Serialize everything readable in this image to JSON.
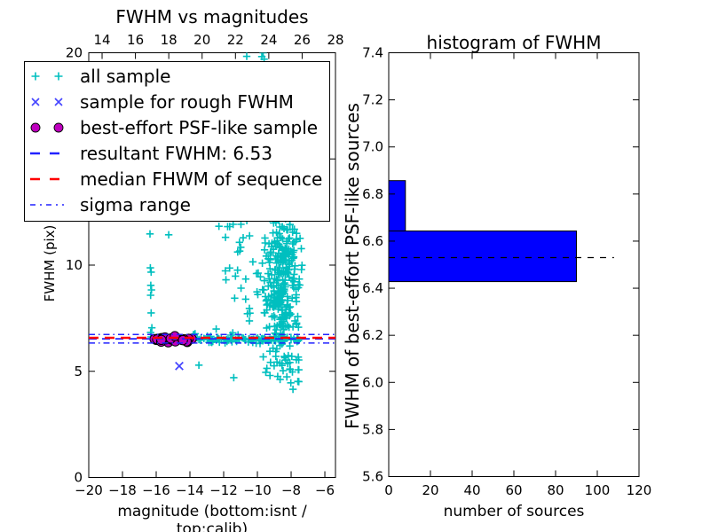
{
  "figure": {
    "background": "#ffffff"
  },
  "colors": {
    "cyan": "#00bfbf",
    "blue_marker": "#4444ff",
    "blue_line": "#2222ff",
    "red": "#ff0000",
    "magenta": "#bf00bf",
    "bar_blue": "#0000ff",
    "black": "#000000"
  },
  "chart_data": [
    {
      "type": "scatter",
      "title": "FWHM vs magnitudes",
      "xlabel": "magnitude (bottom:isnt / top:calib)",
      "ylabel": "FWHM (pix)",
      "xlim": [
        -20,
        -5.37
      ],
      "ylim": [
        0,
        20
      ],
      "xticks_bottom": [
        -20,
        -18,
        -16,
        -14,
        -12,
        -10,
        -8,
        -6
      ],
      "top_axis": {
        "lim": [
          13.2,
          28.0
        ],
        "ticks": [
          14,
          16,
          18,
          20,
          22,
          24,
          26,
          28
        ]
      },
      "yticks": [
        0,
        5,
        10,
        15,
        20
      ],
      "grid": false,
      "seed": 7,
      "series": [
        {
          "name": "all sample",
          "marker": "plus",
          "color": "#00bfbf",
          "points": [
            [
              -16.37,
              11.47
            ],
            [
              -15.26,
              11.43
            ],
            [
              -16.35,
              9.87
            ],
            [
              -16.3,
              9.67
            ],
            [
              -16.32,
              9.05
            ],
            [
              -16.28,
              8.83
            ],
            [
              -16.33,
              8.58
            ],
            [
              -16.3,
              7.75
            ],
            [
              -16.26,
              7.05
            ],
            [
              -16.33,
              6.83
            ],
            [
              -16.3,
              6.62
            ],
            [
              -13.47,
              5.29
            ],
            [
              -11.4,
              4.7
            ],
            [
              -7.89,
              4.15
            ],
            [
              -10.63,
              19.83
            ],
            [
              -9.74,
              19.82
            ],
            [
              -9.6,
              19.7
            ],
            [
              -9.66,
              20.0
            ]
          ],
          "clusters": [
            {
              "n": 95,
              "m": [
                "uniform",
                -13.85,
                -7.5
              ],
              "f": [
                "gauss",
                6.5,
                0.09
              ]
            },
            {
              "n": 32,
              "m": [
                "uniform",
                -12.45,
                -10.4
              ],
              "f": [
                "uniform",
                5.9,
                12.4
              ]
            },
            {
              "n": 300,
              "m": [
                "gauss",
                -8.6,
                0.62,
                -10.4,
                -7.35
              ],
              "f": [
                "gauss",
                9.2,
                2.0,
                4.5,
                12.6
              ]
            },
            {
              "n": 45,
              "m": [
                "gauss",
                -8.9,
                0.5,
                -10.4,
                -7.4
              ],
              "f": [
                "uniform",
                12.3,
                19.6
              ]
            },
            {
              "n": 22,
              "m": [
                "uniform",
                -9.7,
                -7.5
              ],
              "f": [
                "uniform",
                4.3,
                5.8
              ]
            }
          ]
        },
        {
          "name": "sample for rough FWHM",
          "marker": "x",
          "color": "#4444ff",
          "points": [
            [
              -14.63,
              5.25
            ]
          ],
          "clusters": []
        },
        {
          "name": "best-effort PSF-like sample",
          "marker": "circle",
          "color": "#bf00bf",
          "points": [],
          "clusters": [
            {
              "n": 34,
              "m": [
                "uniform",
                -16.15,
                -13.85
              ],
              "f": [
                "gauss",
                6.5,
                0.06
              ]
            }
          ]
        }
      ],
      "hlines": [
        {
          "name": "resultant FWHM",
          "y": 6.53,
          "color": "#2222ff",
          "dash": [
            9,
            6
          ],
          "width": 1.8
        },
        {
          "name": "median FHWM",
          "y": 6.575,
          "color": "#ff0000",
          "dash": [
            11,
            7
          ],
          "width": 2.4
        },
        {
          "name": "sigma range upper",
          "y": 6.73,
          "color": "#2222ff",
          "dash": [
            7,
            4,
            1.5,
            4
          ],
          "width": 1.5
        },
        {
          "name": "sigma range lower",
          "y": 6.33,
          "color": "#2222ff",
          "dash": [
            7,
            4,
            1.5,
            4
          ],
          "width": 1.5
        }
      ],
      "legend": {
        "position": "upper left",
        "items": [
          {
            "label": "all sample",
            "marker": "plus",
            "color": "#00bfbf"
          },
          {
            "label": "sample for rough FWHM",
            "marker": "x",
            "color": "#4444ff"
          },
          {
            "label": "best-effort PSF-like sample",
            "marker": "circle",
            "color": "#bf00bf"
          },
          {
            "label": "resultant FWHM: 6.53",
            "marker": "dash",
            "color": "#2222ff"
          },
          {
            "label": "median FHWM of sequence",
            "marker": "dash",
            "color": "#ff0000"
          },
          {
            "label": "sigma range",
            "marker": "dashdot",
            "color": "#2222ff"
          }
        ]
      }
    },
    {
      "type": "bar",
      "orientation": "horizontal",
      "title": "histogram of FWHM",
      "xlabel": "number of sources",
      "ylabel": "FWHM of best-effort PSF-like sources",
      "xlim": [
        0,
        120
      ],
      "ylim": [
        5.6,
        7.4
      ],
      "xticks": [
        0,
        20,
        40,
        60,
        80,
        100,
        120
      ],
      "yticks": [
        5.6,
        5.8,
        6.0,
        6.2,
        6.4,
        6.6,
        6.8,
        7.0,
        7.2,
        7.4
      ],
      "grid": false,
      "bar_color": "#0000ff",
      "bars": [
        {
          "from": 6.428,
          "to": 6.643,
          "count": 90
        },
        {
          "from": 6.643,
          "to": 6.857,
          "count": 8
        }
      ],
      "dashed_line": {
        "y": 6.53,
        "x_from": 0,
        "x_to": 108,
        "color": "#000000",
        "dash": [
          7,
          7
        ]
      }
    }
  ]
}
